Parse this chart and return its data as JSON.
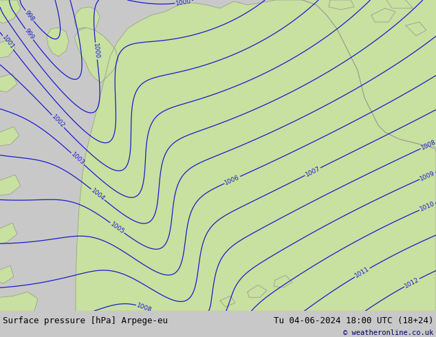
{
  "title_left": "Surface pressure [hPa] Arpege-eu",
  "title_right": "Tu 04-06-2024 18:00 UTC (18+24)",
  "credit": "© weatheronline.co.uk",
  "sea_color": "#d8d8d8",
  "land_color": "#c8e0a0",
  "blue_color": "#1a1acc",
  "black_color": "#000000",
  "red_color": "#cc0000",
  "footer_bg": "#c8c8c8",
  "footer_text_color": "#000000",
  "credit_color": "#000066",
  "font_size_footer": 9,
  "figsize": [
    6.34,
    4.9
  ],
  "dpi": 100
}
